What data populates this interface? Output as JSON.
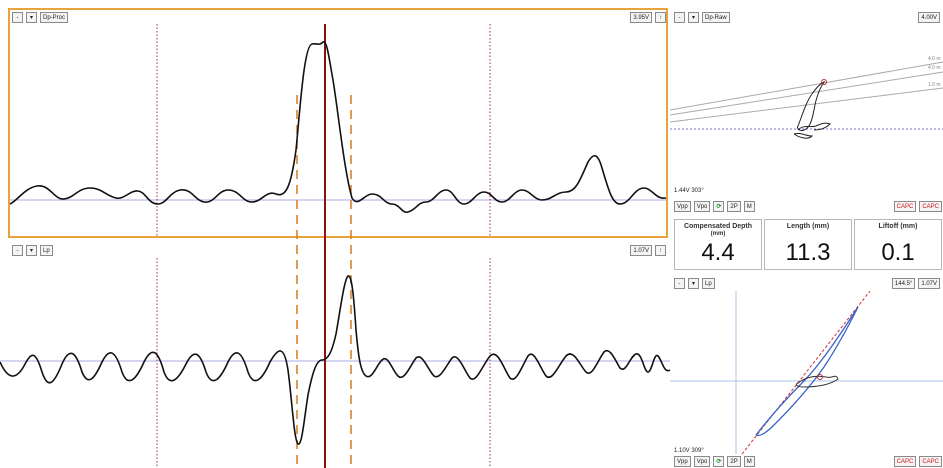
{
  "top_panel": {
    "channel": "Dp-Proc",
    "volts": "3.95V",
    "ctrl_left": "-",
    "ctrl_left2": "▾",
    "ctrl_right": "↑"
  },
  "bottom_panel": {
    "channel": "Lp",
    "volts": "1.07V",
    "ctrl_left": "-",
    "ctrl_left2": "▾",
    "ctrl_right": "↑"
  },
  "right_top": {
    "channel": "Dp-Raw",
    "volts": "4.00V",
    "readout": "1.44V 303°",
    "curve_labels": [
      "4.0 m",
      "4.0 m",
      "1.0 m"
    ],
    "buttons": [
      "Vpp",
      "Vpo",
      "⟳",
      "2P",
      "M"
    ],
    "capc1": "CAPC",
    "capc2": "CAPC"
  },
  "metrics": [
    {
      "title": "Compensated Depth",
      "unit": "(mm)",
      "value": "4.4"
    },
    {
      "title": "Length (mm)",
      "unit": "",
      "value": "11.3"
    },
    {
      "title": "Liftoff (mm)",
      "unit": "",
      "value": "0.1"
    }
  ],
  "right_bottom": {
    "channel": "Lp",
    "angle": "144.5°",
    "volts": "1.07V",
    "readout": "1.10V 309°",
    "buttons": [
      "Vpp",
      "Vpo",
      "⟳",
      "2P",
      "M"
    ],
    "capc1": "CAPC",
    "capc2": "CAPC"
  },
  "colors": {
    "highlight_border": "#e8a33a",
    "signal": "#111111",
    "cursor_red": "#8b1010",
    "dotted_red": "#a03030",
    "dashed_orange": "#d9822b",
    "baseline_blue": "#a9a9e8",
    "lissajous_blue": "#3a63c8"
  }
}
